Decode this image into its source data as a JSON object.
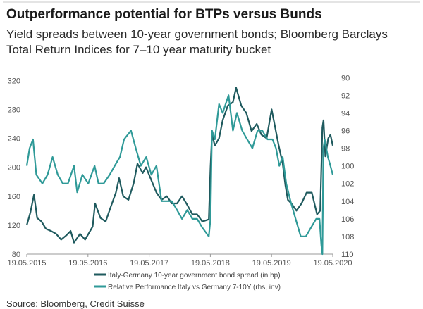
{
  "title": "Outperformance potential for BTPs versus Bunds",
  "subtitle": "Yield spreads between 10-year government bonds; Bloomberg Barclays Total Return Indices for 7–10 year maturity bucket",
  "source": "Source: Bloomberg, Credit Suisse",
  "chart_data": {
    "type": "line",
    "x_tick_labels": [
      "19.05.2015",
      "19.05.2016",
      "19.05.2017",
      "19.05.2018",
      "19.05.2019",
      "19.05.2020"
    ],
    "x_range": [
      "2015-05-19",
      "2020-05-19"
    ],
    "left_axis": {
      "ylim": [
        80,
        330
      ],
      "ticks": [
        80,
        120,
        160,
        200,
        240,
        280,
        320
      ]
    },
    "right_axis": {
      "ylim": [
        110,
        89.5
      ],
      "inverted": true,
      "ticks": [
        90,
        92,
        94,
        96,
        98,
        100,
        102,
        104,
        106,
        108,
        110
      ]
    },
    "grid": false,
    "legend": "bottom",
    "colors": {
      "spread": "#1f5a5e",
      "performance": "#2f9a98"
    },
    "series": [
      {
        "name": "Italy-Germany 10-year government bond spread (in bp)",
        "axis": "left",
        "x": [
          "2015-05-19",
          "2015-06-10",
          "2015-07-01",
          "2015-07-20",
          "2015-08-15",
          "2015-09-10",
          "2015-10-10",
          "2015-11-10",
          "2015-12-10",
          "2016-01-10",
          "2016-02-05",
          "2016-02-25",
          "2016-04-01",
          "2016-05-01",
          "2016-06-15",
          "2016-06-30",
          "2016-08-01",
          "2016-09-01",
          "2016-10-01",
          "2016-11-01",
          "2016-11-20",
          "2016-12-15",
          "2017-01-15",
          "2017-02-15",
          "2017-03-10",
          "2017-04-10",
          "2017-04-30",
          "2017-06-01",
          "2017-07-01",
          "2017-08-01",
          "2017-09-01",
          "2017-10-01",
          "2017-11-01",
          "2017-12-01",
          "2018-01-01",
          "2018-02-01",
          "2018-03-01",
          "2018-04-01",
          "2018-05-10",
          "2018-05-20",
          "2018-05-29",
          "2018-06-15",
          "2018-07-10",
          "2018-08-01",
          "2018-08-31",
          "2018-10-01",
          "2018-10-20",
          "2018-11-20",
          "2018-12-20",
          "2019-01-20",
          "2019-02-20",
          "2019-03-20",
          "2019-04-20",
          "2019-05-20",
          "2019-06-10",
          "2019-07-01",
          "2019-07-25",
          "2019-08-10",
          "2019-08-25",
          "2019-09-15",
          "2019-10-15",
          "2019-11-15",
          "2019-12-15",
          "2020-01-15",
          "2020-02-15",
          "2020-03-05",
          "2020-03-18",
          "2020-03-25",
          "2020-04-05",
          "2020-04-22",
          "2020-05-05",
          "2020-05-19"
        ],
        "values": [
          120,
          138,
          162,
          130,
          125,
          115,
          112,
          108,
          100,
          106,
          112,
          96,
          108,
          100,
          118,
          150,
          130,
          125,
          145,
          165,
          185,
          160,
          155,
          178,
          205,
          192,
          200,
          182,
          165,
          155,
          160,
          150,
          150,
          160,
          148,
          135,
          135,
          125,
          128,
          200,
          245,
          230,
          240,
          265,
          285,
          290,
          310,
          285,
          275,
          250,
          260,
          245,
          240,
          280,
          255,
          230,
          205,
          175,
          155,
          150,
          140,
          150,
          165,
          165,
          135,
          140,
          255,
          265,
          215,
          240,
          245,
          230
        ]
      },
      {
        "name": "Relative Performance Italy vs Germany 7-10Y (rhs, inv)",
        "axis": "right",
        "x": [
          "2015-05-19",
          "2015-06-05",
          "2015-06-25",
          "2015-07-15",
          "2015-08-20",
          "2015-09-20",
          "2015-10-20",
          "2015-11-20",
          "2015-12-20",
          "2016-01-20",
          "2016-02-25",
          "2016-03-15",
          "2016-04-15",
          "2016-05-20",
          "2016-06-27",
          "2016-07-20",
          "2016-08-20",
          "2016-09-25",
          "2016-10-25",
          "2016-11-25",
          "2016-12-20",
          "2017-01-30",
          "2017-02-28",
          "2017-03-30",
          "2017-05-01",
          "2017-06-01",
          "2017-07-01",
          "2017-08-01",
          "2017-09-01",
          "2017-10-01",
          "2017-11-01",
          "2017-12-01",
          "2018-01-01",
          "2018-02-01",
          "2018-03-01",
          "2018-04-01",
          "2018-05-10",
          "2018-05-20",
          "2018-05-29",
          "2018-06-15",
          "2018-07-10",
          "2018-08-01",
          "2018-09-05",
          "2018-10-01",
          "2018-10-25",
          "2018-11-25",
          "2018-12-25",
          "2019-01-25",
          "2019-02-25",
          "2019-03-25",
          "2019-04-25",
          "2019-05-25",
          "2019-06-15",
          "2019-07-05",
          "2019-07-25",
          "2019-08-15",
          "2019-09-10",
          "2019-10-10",
          "2019-11-10",
          "2019-12-10",
          "2020-01-10",
          "2020-02-10",
          "2020-03-01",
          "2020-03-12",
          "2020-03-18",
          "2020-03-24",
          "2020-04-01",
          "2020-04-20",
          "2020-05-05",
          "2020-05-19"
        ],
        "values": [
          100,
          98,
          97,
          101,
          102,
          101,
          99,
          101,
          102,
          102,
          100,
          103,
          101,
          102,
          100,
          102,
          102,
          101,
          100,
          99,
          97,
          96,
          98,
          100,
          99,
          101,
          100,
          104,
          104,
          104,
          105,
          106,
          105,
          106,
          106,
          107,
          108,
          106,
          96,
          97,
          93,
          94,
          92,
          96,
          94,
          96,
          97,
          98,
          96,
          96,
          97,
          97,
          98,
          100,
          99,
          102,
          104,
          106,
          108,
          108,
          107,
          106,
          106,
          109,
          110,
          98,
          97,
          99,
          100,
          101
        ]
      }
    ]
  }
}
